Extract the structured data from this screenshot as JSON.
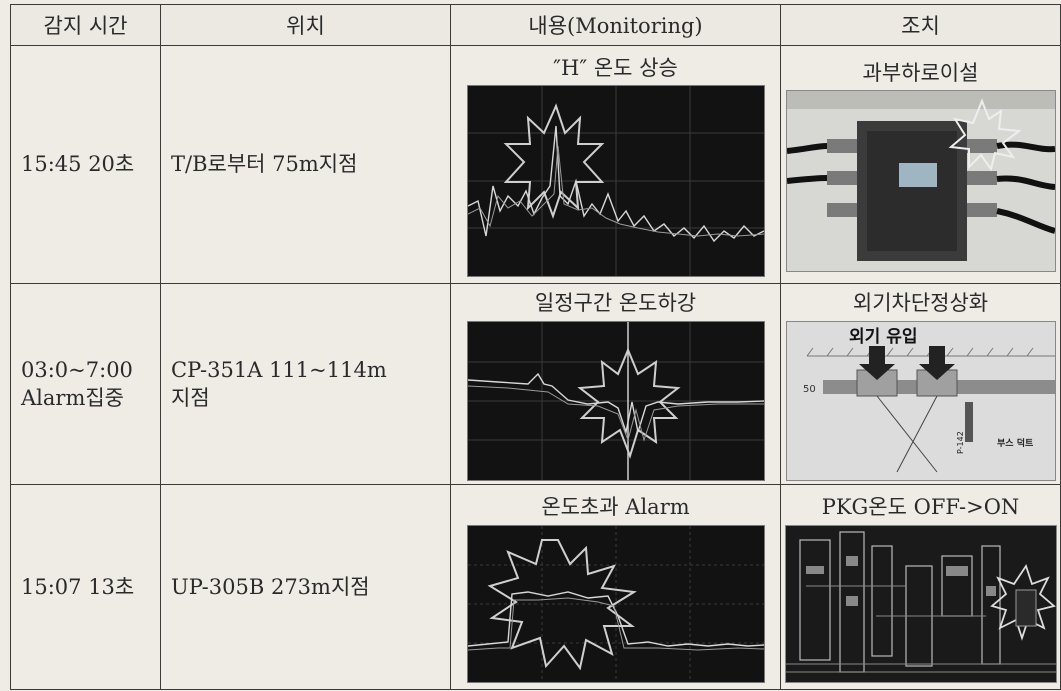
{
  "headers": [
    "감지 시간",
    "위치",
    "내용(Monitoring)",
    "조치"
  ],
  "rows": [
    {
      "time": [
        "15:45 20초"
      ],
      "location": [
        "T/B로부터 75m지점"
      ],
      "monitoring_caption": "″H″ 온도 상승",
      "action_caption": "과부하로이설"
    },
    {
      "time": [
        "03:0~7:00",
        "Alarm집중"
      ],
      "location": [
        "CP-351A 111~114m",
        "지점"
      ],
      "monitoring_caption": "일정구간 온도하강",
      "action_caption": "외기차단정상화",
      "action_image_text": {
        "title": "외기 유입",
        "side": "50",
        "label": "부스 덕트",
        "tag": "P-142"
      }
    },
    {
      "time": [
        "15:07 13초"
      ],
      "location": [
        "UP-305B 273m지점"
      ],
      "monitoring_caption": "온도초과 Alarm",
      "action_caption": "PKG온도 OFF->ON"
    }
  ]
}
